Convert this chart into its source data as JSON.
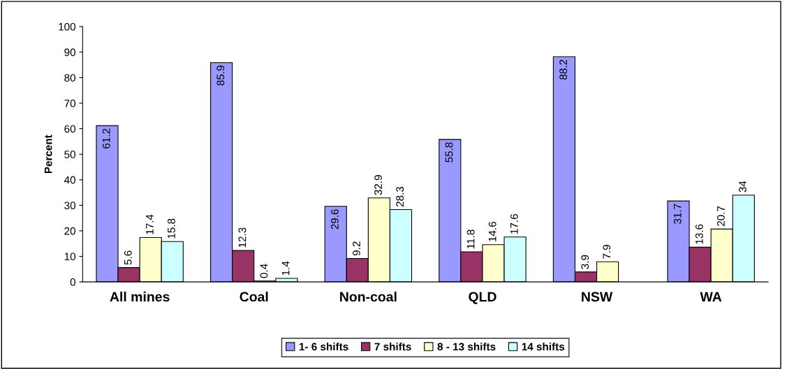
{
  "chart_data": {
    "type": "bar",
    "ylabel": "Percent",
    "categories": [
      "All mines",
      "Coal",
      "Non-coal",
      "QLD",
      "NSW",
      "WA"
    ],
    "series": [
      {
        "name": "1- 6 shifts",
        "color": "#9999ff",
        "values": [
          61.2,
          85.9,
          29.6,
          55.8,
          88.2,
          31.7
        ]
      },
      {
        "name": "7 shifts",
        "color": "#993366",
        "values": [
          5.6,
          12.3,
          9.2,
          11.8,
          3.9,
          13.6
        ]
      },
      {
        "name": "8 - 13 shifts",
        "color": "#ffffcc",
        "values": [
          17.4,
          0.4,
          32.9,
          14.6,
          7.9,
          20.7
        ]
      },
      {
        "name": "14 shifts",
        "color": "#ccffff",
        "values": [
          15.8,
          1.4,
          28.3,
          17.6,
          null,
          34
        ]
      }
    ],
    "ylim": [
      0,
      100
    ],
    "yticks": [
      0,
      10,
      20,
      30,
      40,
      50,
      60,
      70,
      80,
      90,
      100
    ],
    "grid": false,
    "legend": "bottom",
    "data_labels": true
  }
}
